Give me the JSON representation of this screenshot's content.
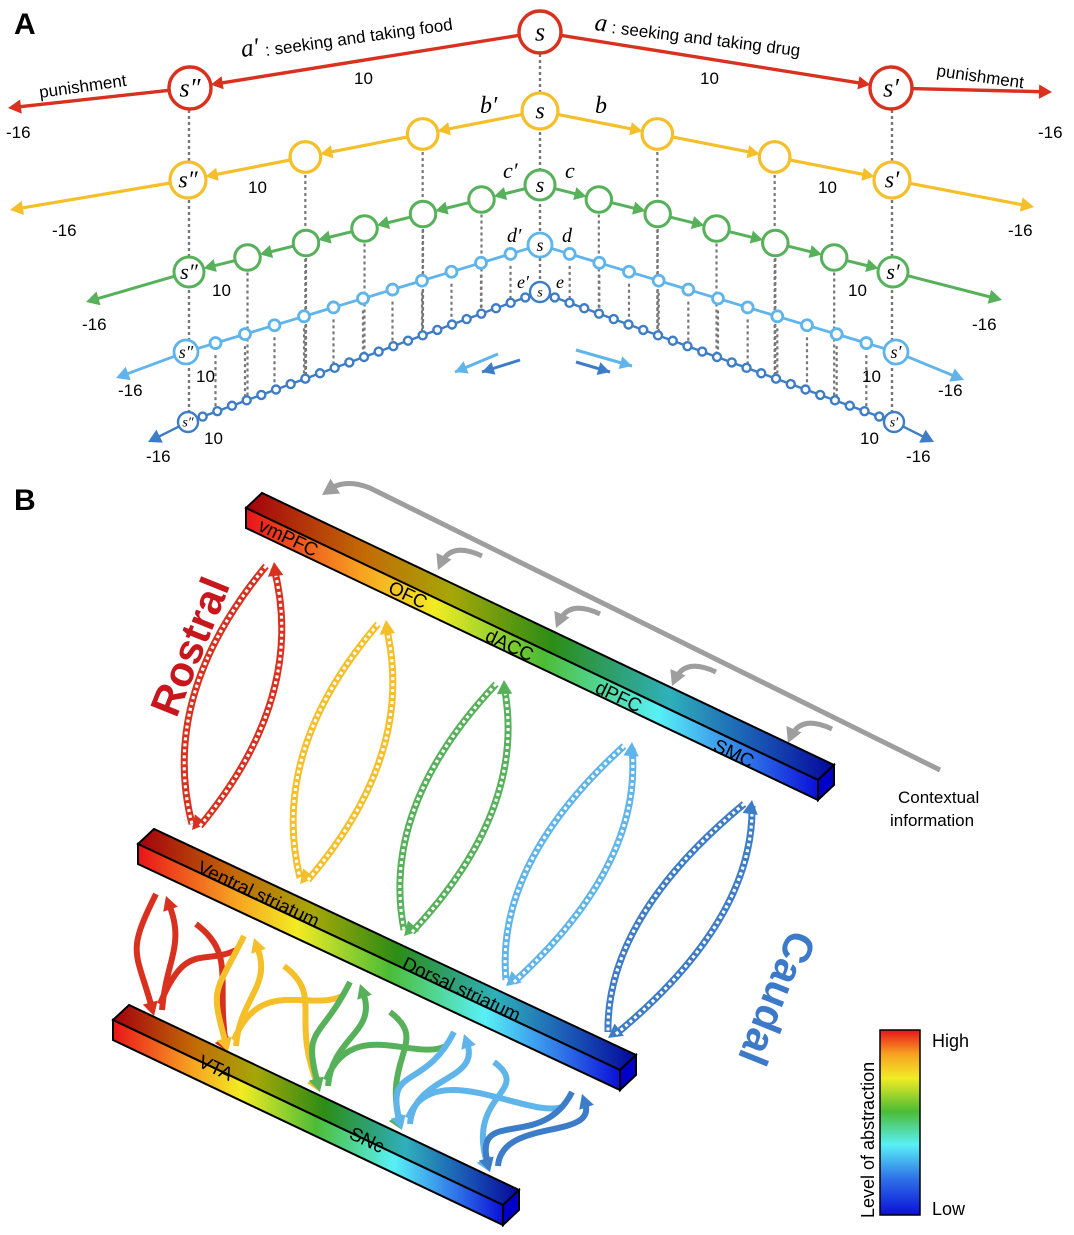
{
  "panel_a": {
    "letter": "A",
    "state_s": "s",
    "state_s_prime": "s′",
    "state_s_double": "s″",
    "level_a": {
      "left_action": "a′",
      "left_text": ": seeking and taking food",
      "right_action": "a",
      "right_text": ": seeking and taking drug",
      "left_reward": "10",
      "right_reward": "10",
      "left_punishment": "punishment",
      "right_punishment": "punishment",
      "left_penalty": "-16",
      "right_penalty": "-16"
    },
    "level_b": {
      "left_action": "b′",
      "right_action": "b",
      "left_reward": "10",
      "right_reward": "10",
      "left_penalty": "-16",
      "right_penalty": "-16"
    },
    "level_c": {
      "left_action": "c′",
      "right_action": "c",
      "left_reward": "10",
      "right_reward": "10",
      "left_penalty": "-16",
      "right_penalty": "-16"
    },
    "level_d": {
      "left_action": "d′",
      "right_action": "d",
      "left_reward": "10",
      "right_reward": "10",
      "left_penalty": "-16",
      "right_penalty": "-16"
    },
    "level_e": {
      "left_action": "e′",
      "right_action": "e",
      "left_reward": "10",
      "right_reward": "10",
      "left_penalty": "-16",
      "right_penalty": "-16"
    },
    "colors": {
      "a": "#d9311f",
      "b": "#f5bf2a",
      "c": "#56b15a",
      "d": "#5fb4ea",
      "e": "#3d7cc6"
    }
  },
  "panel_b": {
    "letter": "B",
    "cortex_areas": [
      "vmPFC",
      "OFC",
      "dACC",
      "dPFC",
      "SMC"
    ],
    "striatum_areas": [
      "Ventral striatum",
      "Dorsal striatum"
    ],
    "midbrain_areas": [
      "VTA",
      "SNc"
    ],
    "rostral_label": "Rostral",
    "caudal_label": "Caudal",
    "context_label_line1": "Contextual",
    "context_label_line2": "information",
    "legend": {
      "title": "Level of abstraction",
      "high": "High",
      "low": "Low"
    },
    "colors": {
      "rostral": "#c8161d",
      "caudal": "#3c79c8",
      "context_arrow": "#9e9e9e"
    }
  }
}
